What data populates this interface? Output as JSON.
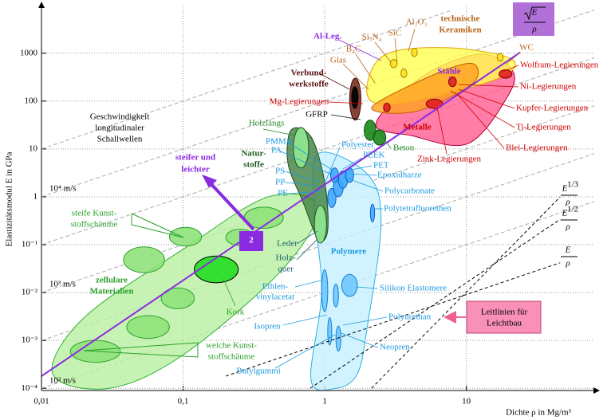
{
  "chart_data": {
    "type": "ashby",
    "x_label": "Dichte ρ in  Mg/m³",
    "y_label": "Elastizitätsmodul E in GPa",
    "log_x": true,
    "log_y": true,
    "grid": true,
    "xlim": [
      0.01,
      80
    ],
    "ylim": [
      9e-05,
      9500
    ],
    "xticks": [
      {
        "value": 0.01,
        "label": "0,01"
      },
      {
        "value": 0.1,
        "label": "0,1"
      },
      1,
      10
    ],
    "yticks": [
      {
        "value": 0.0001,
        "label": "10⁻⁴"
      },
      {
        "value": 0.001,
        "label": "10⁻³"
      },
      {
        "value": 0.01,
        "label": "10⁻²"
      },
      {
        "value": 0.1,
        "label": "10⁻¹"
      },
      1,
      10,
      100,
      1000
    ],
    "regions": [
      {
        "fill": "#b8f0a0",
        "stroke": "#30b030",
        "x": [
          0.012,
          0.02,
          0.1,
          0.4,
          0.9,
          0.5,
          0.1,
          0.03
        ],
        "y": [
          0.0002,
          0.003,
          0.08,
          1,
          0.6,
          0.03,
          0.0005,
          0.0001
        ]
      },
      {
        "fill": "#c4f0ff",
        "stroke": "#30b0e0",
        "x": [
          0.9,
          2,
          2.5,
          2,
          1.7,
          1.2,
          0.8,
          0.95,
          0.85
        ],
        "y": [
          8,
          3,
          0.3,
          0.002,
          0.0002,
          0.0001,
          0.00015,
          0.01,
          0.5
        ]
      },
      {
        "fill": "#3f7f3f",
        "stroke": "#1f4f1f",
        "x": [
          0.58,
          0.8,
          1.0,
          1.05,
          0.9,
          0.7,
          0.55
        ],
        "y": [
          25,
          18,
          2,
          0.2,
          0.13,
          0.8,
          5
        ]
      },
      {
        "fill": "#ff5c90",
        "stroke": "#b00030",
        "x": [
          2.3,
          5,
          12.5,
          21,
          19.7,
          10.3,
          4.1
        ],
        "y": [
          34,
          340,
          960,
          450,
          130,
          13,
          19
        ]
      },
      {
        "fill": "#ffff50",
        "stroke": "#e0a000",
        "x": [
          2.0,
          2.6,
          7.4,
          21,
          16,
          3.4
        ],
        "y": [
          130,
          890,
          1300,
          740,
          280,
          89
        ]
      },
      {
        "fill": "#ffa020",
        "stroke": "#c06000",
        "x": [
          2.15,
          5.7,
          11,
          11,
          4.4
        ],
        "y": [
          74,
          340,
          610,
          230,
          61
        ]
      }
    ],
    "ellipses": [
      {
        "fill": "#8ee27a",
        "stroke": "#30a030",
        "x": [
          0.016,
          0.036
        ],
        "y": [
          0.00035,
          0.001
        ]
      },
      {
        "fill": "#8ee27a",
        "stroke": "#30a030",
        "x": [
          0.04,
          0.08
        ],
        "y": [
          0.0011,
          0.0033
        ]
      },
      {
        "fill": "#8ee27a",
        "stroke": "#30a030",
        "x": [
          0.07,
          0.12
        ],
        "y": [
          0.0046,
          0.0125
        ]
      },
      {
        "fill": "#8ee27a",
        "stroke": "#30a030",
        "x": [
          0.038,
          0.074
        ],
        "y": [
          0.026,
          0.09
        ]
      },
      {
        "fill": "#8ee27a",
        "stroke": "#30a030",
        "x": [
          0.08,
          0.135
        ],
        "y": [
          0.093,
          0.23
        ]
      },
      {
        "fill": "#8ee27a",
        "stroke": "#30a030",
        "x": [
          0.27,
          0.51
        ],
        "y": [
          0.22,
          0.61
        ]
      },
      {
        "fill": "#8ee27a",
        "stroke": "#30a030",
        "x": [
          0.2,
          0.32
        ],
        "y": [
          0.096,
          0.21
        ]
      },
      {
        "fill": "#22dd22",
        "stroke": "#000000",
        "x": [
          0.12,
          0.245
        ],
        "y": [
          0.016,
          0.058
        ]
      },
      {
        "fill": "#90e890",
        "stroke": "#1f4f1f",
        "x": [
          0.6,
          0.77
        ],
        "y": [
          4,
          28
        ]
      },
      {
        "fill": "#90e890",
        "stroke": "#1f4f1f",
        "x": [
          0.845,
          1.03
        ],
        "y": [
          0.108,
          0.66
        ]
      },
      {
        "fill": "#40a8ff",
        "stroke": "#1060c0",
        "x": [
          1.05,
          1.2
        ],
        "y": [
          0.6,
          1.5
        ]
      },
      {
        "fill": "#40a8ff",
        "stroke": "#1060c0",
        "x": [
          1.15,
          1.35
        ],
        "y": [
          1,
          2.5
        ]
      },
      {
        "fill": "#40a8ff",
        "stroke": "#1060c0",
        "x": [
          1.25,
          1.45
        ],
        "y": [
          1.5,
          3.5
        ]
      },
      {
        "fill": "#40a8ff",
        "stroke": "#1060c0",
        "x": [
          1.4,
          1.6
        ],
        "y": [
          2,
          4
        ]
      },
      {
        "fill": "#40a8ff",
        "stroke": "#1060c0",
        "x": [
          1.1,
          1.25
        ],
        "y": [
          2,
          4
        ]
      },
      {
        "fill": "#40a8ff",
        "stroke": "#1060c0",
        "x": [
          2.1,
          2.25
        ],
        "y": [
          0.3,
          0.7
        ]
      },
      {
        "fill": "#70c8ff",
        "stroke": "#1080d0",
        "x": [
          1.32,
          1.7
        ],
        "y": [
          0.0083,
          0.024
        ]
      },
      {
        "fill": "#70c8ff",
        "stroke": "#1080d0",
        "x": [
          0.95,
          1.05
        ],
        "y": [
          0.004,
          0.03
        ]
      },
      {
        "fill": "#70c8ff",
        "stroke": "#1080d0",
        "x": [
          1.15,
          1.25
        ],
        "y": [
          0.005,
          0.015
        ]
      },
      {
        "fill": "#70c8ff",
        "stroke": "#1080d0",
        "x": [
          1.05,
          1.12
        ],
        "y": [
          0.0008,
          0.003
        ]
      },
      {
        "fill": "#70c8ff",
        "stroke": "#1080d0",
        "x": [
          1.2,
          1.3
        ],
        "y": [
          0.0006,
          0.002
        ]
      },
      {
        "fill": "#ffe020",
        "stroke": "#b08000",
        "x": [
          2.9,
          3.25
        ],
        "y": [
          500,
          740
        ]
      },
      {
        "fill": "#ffe020",
        "stroke": "#b08000",
        "x": [
          3.45,
          3.8
        ],
        "y": [
          310,
          470
        ]
      },
      {
        "fill": "#ffe020",
        "stroke": "#b08000",
        "x": [
          4.1,
          4.5
        ],
        "y": [
          850,
          1270
        ]
      },
      {
        "fill": "#ffe020",
        "stroke": "#b08000",
        "x": [
          16.5,
          18.2
        ],
        "y": [
          680,
          1000
        ]
      },
      {
        "fill": "#e02020",
        "stroke": "#800000",
        "x": [
          5.2,
          6.8
        ],
        "y": [
          70,
          110
        ]
      },
      {
        "fill": "#e02020",
        "stroke": "#800000",
        "x": [
          7.5,
          8.5
        ],
        "y": [
          200,
          320
        ]
      },
      {
        "fill": "#e02020",
        "stroke": "#800000",
        "x": [
          17,
          21
        ],
        "y": [
          300,
          450
        ]
      },
      {
        "fill": "#e02020",
        "stroke": "#800000",
        "x": [
          2.6,
          2.9
        ],
        "y": [
          60,
          90
        ]
      },
      {
        "fill": "#7a2e20",
        "stroke": "#3a0a00",
        "x": [
          1.5,
          1.8
        ],
        "y": [
          40,
          300
        ]
      },
      {
        "fill": "#000000",
        "stroke": "#000000",
        "x": [
          1.55,
          1.72
        ],
        "y": [
          70,
          200
        ]
      },
      {
        "fill": "#1a8a1a",
        "stroke": "#0a4a0a",
        "x": [
          1.9,
          2.3
        ],
        "y": [
          15,
          40
        ]
      },
      {
        "fill": "#1a8a1a",
        "stroke": "#0a4a0a",
        "x": [
          2.2,
          2.7
        ],
        "y": [
          12,
          25
        ]
      }
    ],
    "sound_lines": [
      {
        "x": [
          0.01,
          80
        ],
        "y": [
          0.0001,
          0.8
        ]
      },
      {
        "x": [
          0.01,
          80
        ],
        "y": [
          0.001,
          8
        ]
      },
      {
        "x": [
          0.01,
          80
        ],
        "y": [
          0.01,
          80
        ]
      },
      {
        "x": [
          0.01,
          80
        ],
        "y": [
          0.1,
          800
        ]
      },
      {
        "x": [
          0.01,
          80
        ],
        "y": [
          1,
          8000
        ]
      },
      {
        "x": [
          0.01,
          8
        ],
        "y": [
          10,
          8000
        ]
      }
    ],
    "purple_line": {
      "color": "#8a2be2",
      "x": [
        0.01,
        24
      ],
      "y": [
        0.00018,
        1040
      ]
    },
    "guides": [
      {
        "x": [
          2.14,
          46
        ],
        "y": [
          0.0001,
          1
        ],
        "label": {
          "num": "E",
          "exp": "1/3",
          "den": "ρ"
        }
      },
      {
        "x": [
          0.79,
          46
        ],
        "y": [
          0.0001,
          0.34
        ],
        "label": {
          "num": "E",
          "exp": "1/2",
          "den": "ρ"
        }
      },
      {
        "x": [
          0.2,
          46
        ],
        "y": [
          0.00018,
          0.042
        ],
        "label": {
          "num": "E",
          "den": "ρ"
        }
      }
    ],
    "index_box": {
      "num": "E",
      "den": "ρ"
    },
    "annotations": [
      {
        "text": "Al-Leg.",
        "color": "#8a2be2",
        "bold": true
      },
      {
        "text": "technische",
        "color": "#b8651a",
        "bold": true
      },
      {
        "text": "Keramiken",
        "color": "#b8651a",
        "bold": true
      },
      {
        "text": "SiC",
        "color": "#b8651a"
      },
      {
        "text": "Al₂O₃",
        "color": "#b8651a"
      },
      {
        "text": "Si₃N₄",
        "color": "#b8651a"
      },
      {
        "text": "B₄C",
        "color": "#b8651a"
      },
      {
        "text": "Glas",
        "color": "#b8651a"
      },
      {
        "text": "WC",
        "color": "#b8651a"
      },
      {
        "text": "Stähle",
        "color": "#8a2be2",
        "bold": true
      },
      {
        "text": "Wolfram-Legierungen",
        "color": "#d00000"
      },
      {
        "text": "Ni-Legierungen",
        "color": "#d00000"
      },
      {
        "text": "Kupfer-Legierungen",
        "color": "#d00000"
      },
      {
        "text": "Ti-Legierungen",
        "color": "#d00000"
      },
      {
        "text": "Blei-Legierungen",
        "color": "#d00000"
      },
      {
        "text": "Zink-Legierungen",
        "color": "#d00000"
      },
      {
        "text": "Metalle",
        "color": "#d00000",
        "bold": true
      },
      {
        "text": "Verbund-",
        "color": "#5a1010",
        "bold": true
      },
      {
        "text": "werkstoffe",
        "color": "#5a1010",
        "bold": true
      },
      {
        "text": "Mg-Legierungen",
        "color": "#d00000"
      },
      {
        "text": "GFRP",
        "color": "#000000"
      },
      {
        "text": "Beton",
        "color": "#1a8a1a"
      },
      {
        "text": "Holzlängs",
        "color": "#2a8a2a"
      },
      {
        "text": "Geschwindigkeit",
        "color": "#000000"
      },
      {
        "text": "longitudinaler",
        "color": "#000000"
      },
      {
        "text": "Schallwellen",
        "color": "#000000"
      },
      {
        "text": "Natur-",
        "color": "#1f5f1f",
        "bold": true
      },
      {
        "text": "stoffe",
        "color": "#1f5f1f",
        "bold": true
      },
      {
        "text": "PMMA",
        "color": "#1a9ae0"
      },
      {
        "text": "PA",
        "color": "#1a9ae0"
      },
      {
        "text": "Polyester",
        "color": "#1a9ae0"
      },
      {
        "text": "PEEK",
        "color": "#1a9ae0"
      },
      {
        "text": "PET",
        "color": "#1a9ae0"
      },
      {
        "text": "Epoxidharze",
        "color": "#1a9ae0"
      },
      {
        "text": "Polycarbonate",
        "color": "#1a9ae0"
      },
      {
        "text": "Polytetrafluorethen",
        "color": "#1a9ae0"
      },
      {
        "text": "PS",
        "color": "#1a9ae0"
      },
      {
        "text": "PP",
        "color": "#1a9ae0"
      },
      {
        "text": "PE",
        "color": "#1a9ae0"
      },
      {
        "text": "steifer und",
        "color": "#8a2be2",
        "bold": true
      },
      {
        "text": "leichter",
        "color": "#8a2be2",
        "bold": true
      },
      {
        "text": "10⁴ m/s",
        "color": "#000000"
      },
      {
        "text": "10³ m/s",
        "color": "#000000"
      },
      {
        "text": "10² m/s",
        "color": "#000000"
      },
      {
        "text": "steife Kunst-",
        "color": "#2aa02a"
      },
      {
        "text": "stoffschäume",
        "color": "#2aa02a"
      },
      {
        "text": "zellulare",
        "color": "#2aa02a",
        "bold": true
      },
      {
        "text": "Materialien",
        "color": "#2aa02a",
        "bold": true
      },
      {
        "text": "Kork",
        "color": "#2aa02a"
      },
      {
        "text": "Leder",
        "color": "#1f5f6f"
      },
      {
        "text": "Holz-",
        "color": "#1f5f6f"
      },
      {
        "text": "quer",
        "color": "#1f5f6f"
      },
      {
        "text": "Polymere",
        "color": "#1a9ae0",
        "bold": true
      },
      {
        "text": "Ethlen-",
        "color": "#1a9ae0"
      },
      {
        "text": "vinylacetat",
        "color": "#1a9ae0"
      },
      {
        "text": "Silikon Elastomere",
        "color": "#1a9ae0"
      },
      {
        "text": "Isopren",
        "color": "#1a9ae0"
      },
      {
        "text": "Polyurethan",
        "color": "#1a9ae0"
      },
      {
        "text": "Neopren",
        "color": "#1a9ae0"
      },
      {
        "text": "Butylgummi",
        "color": "#1a9ae0"
      },
      {
        "text": "weiche Kunst-",
        "color": "#2aa02a"
      },
      {
        "text": "stoffschäume",
        "color": "#2aa02a"
      },
      {
        "text": "Leitlinien für",
        "color": "#000000"
      },
      {
        "text": "Leichtbau",
        "color": "#000000"
      },
      {
        "text": "2",
        "color": "#ffffff",
        "bold": true
      }
    ]
  }
}
